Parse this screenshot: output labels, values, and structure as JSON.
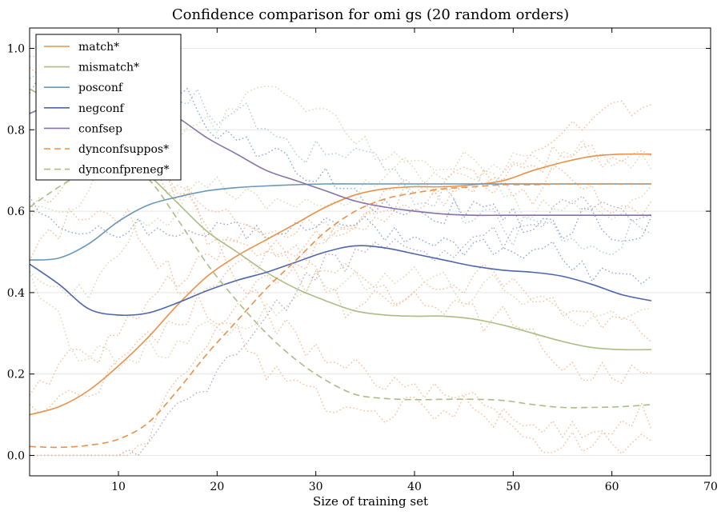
{
  "chart_data": {
    "type": "line",
    "title": "Confidence comparison for omi gs (20 random orders)",
    "xlabel": "Size of training set",
    "ylabel": "",
    "xlim": [
      1,
      70
    ],
    "ylim": [
      -0.05,
      1.05
    ],
    "xticks": [
      10,
      20,
      30,
      40,
      50,
      60,
      70
    ],
    "yticks": [
      0.0,
      0.2,
      0.4,
      0.6,
      0.8,
      1.0
    ],
    "grid": "horizontal",
    "legend_position": "top-left",
    "series": [
      {
        "name": "match*",
        "color": "#e8914a",
        "dash": "solid",
        "x": [
          1,
          4,
          7,
          10,
          13,
          16,
          19,
          22,
          25,
          28,
          31,
          34,
          37,
          40,
          43,
          46,
          49,
          52,
          55,
          58,
          61,
          64
        ],
        "values": [
          0.1,
          0.12,
          0.16,
          0.22,
          0.29,
          0.37,
          0.44,
          0.49,
          0.53,
          0.57,
          0.61,
          0.64,
          0.655,
          0.66,
          0.66,
          0.665,
          0.675,
          0.7,
          0.72,
          0.735,
          0.74,
          0.74
        ]
      },
      {
        "name": "mismatch*",
        "color": "#a9bd84",
        "dash": "solid",
        "x": [
          1,
          4,
          7,
          10,
          13,
          16,
          19,
          22,
          25,
          28,
          31,
          34,
          37,
          40,
          43,
          46,
          49,
          52,
          55,
          58,
          61,
          64
        ],
        "values": [
          0.9,
          0.86,
          0.8,
          0.74,
          0.69,
          0.62,
          0.55,
          0.5,
          0.45,
          0.41,
          0.38,
          0.355,
          0.345,
          0.342,
          0.342,
          0.335,
          0.32,
          0.3,
          0.28,
          0.265,
          0.26,
          0.26
        ]
      },
      {
        "name": "posconf",
        "color": "#6897b8",
        "dash": "solid",
        "x": [
          1,
          4,
          7,
          10,
          13,
          16,
          19,
          22,
          25,
          28,
          31,
          34,
          37,
          40,
          43,
          46,
          49,
          52,
          55,
          58,
          61,
          64
        ],
        "values": [
          0.48,
          0.485,
          0.52,
          0.575,
          0.615,
          0.635,
          0.65,
          0.658,
          0.662,
          0.665,
          0.667,
          0.667,
          0.667,
          0.667,
          0.667,
          0.667,
          0.667,
          0.667,
          0.667,
          0.667,
          0.667,
          0.667
        ]
      },
      {
        "name": "negconf",
        "color": "#4d65ab",
        "dash": "solid",
        "x": [
          1,
          4,
          7,
          10,
          13,
          16,
          19,
          22,
          25,
          28,
          31,
          34,
          37,
          40,
          43,
          46,
          49,
          52,
          55,
          58,
          61,
          64
        ],
        "values": [
          0.47,
          0.42,
          0.36,
          0.345,
          0.35,
          0.375,
          0.405,
          0.43,
          0.45,
          0.475,
          0.5,
          0.515,
          0.51,
          0.495,
          0.48,
          0.465,
          0.455,
          0.45,
          0.44,
          0.42,
          0.395,
          0.38
        ]
      },
      {
        "name": "confsep",
        "color": "#8572a8",
        "dash": "solid",
        "x": [
          1,
          4,
          7,
          10,
          13,
          16,
          19,
          22,
          25,
          28,
          31,
          34,
          37,
          40,
          43,
          46,
          49,
          52,
          55,
          58,
          61,
          64
        ],
        "values": [
          0.84,
          0.87,
          0.89,
          0.89,
          0.87,
          0.83,
          0.78,
          0.74,
          0.7,
          0.675,
          0.65,
          0.625,
          0.61,
          0.6,
          0.593,
          0.59,
          0.59,
          0.59,
          0.59,
          0.59,
          0.59,
          0.59
        ]
      },
      {
        "name": "dynconfsuppos*",
        "color": "#e8914a",
        "dash": "dashed",
        "x": [
          1,
          4,
          7,
          10,
          13,
          16,
          19,
          22,
          25,
          28,
          31,
          34,
          37,
          40,
          43,
          46,
          49,
          52,
          55,
          58,
          61,
          64
        ],
        "values": [
          0.022,
          0.02,
          0.025,
          0.04,
          0.08,
          0.16,
          0.25,
          0.33,
          0.41,
          0.48,
          0.55,
          0.6,
          0.63,
          0.645,
          0.655,
          0.66,
          0.665,
          0.665,
          0.667,
          0.667,
          0.667,
          0.667
        ]
      },
      {
        "name": "dynconfpreneg*",
        "color": "#a9bd84",
        "dash": "dashed",
        "x": [
          1,
          4,
          7,
          10,
          13,
          16,
          19,
          22,
          25,
          28,
          31,
          34,
          37,
          40,
          43,
          46,
          49,
          52,
          55,
          58,
          61,
          64
        ],
        "values": [
          0.61,
          0.66,
          0.7,
          0.72,
          0.68,
          0.58,
          0.47,
          0.38,
          0.3,
          0.235,
          0.185,
          0.15,
          0.14,
          0.137,
          0.138,
          0.138,
          0.135,
          0.125,
          0.118,
          0.118,
          0.12,
          0.125
        ]
      }
    ]
  }
}
